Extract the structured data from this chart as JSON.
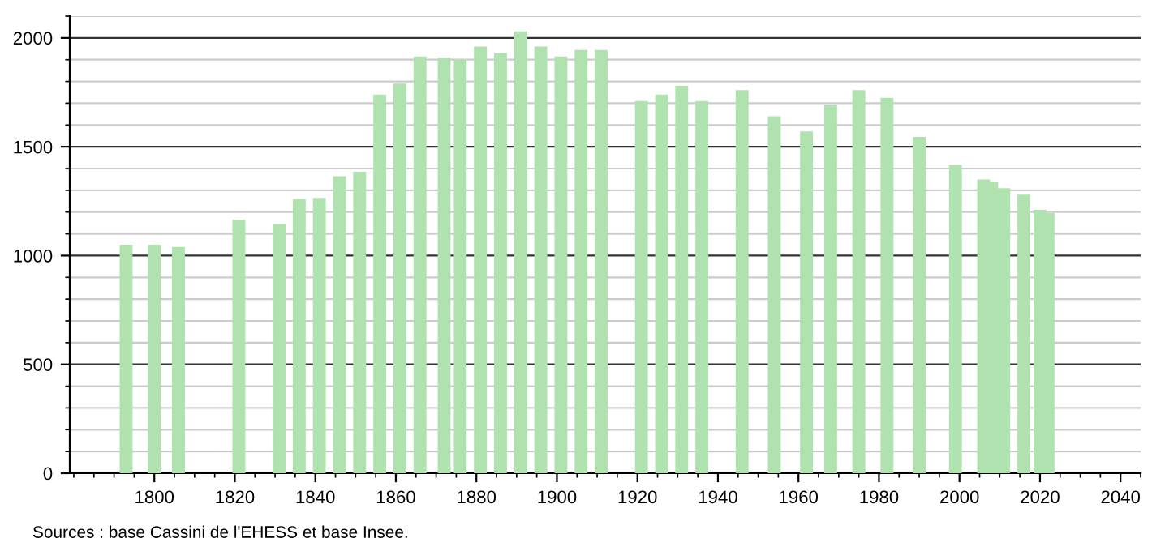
{
  "chart_data": {
    "type": "bar",
    "x": [
      1793,
      1800,
      1806,
      1821,
      1831,
      1836,
      1841,
      1846,
      1851,
      1856,
      1861,
      1866,
      1872,
      1876,
      1881,
      1886,
      1891,
      1896,
      1901,
      1906,
      1911,
      1921,
      1926,
      1931,
      1936,
      1946,
      1954,
      1962,
      1968,
      1975,
      1982,
      1990,
      1999,
      2006,
      2008,
      2011,
      2016,
      2020,
      2022
    ],
    "values": [
      1050,
      1050,
      1040,
      1165,
      1145,
      1260,
      1265,
      1365,
      1385,
      1740,
      1790,
      1915,
      1910,
      1900,
      1960,
      1930,
      2030,
      1960,
      1915,
      1945,
      1945,
      1710,
      1740,
      1780,
      1710,
      1760,
      1640,
      1570,
      1690,
      1760,
      1725,
      1545,
      1415,
      1350,
      1340,
      1310,
      1280,
      1210,
      1195
    ],
    "color": "#b0e2b0",
    "xlim": [
      1779,
      2045
    ],
    "xticks": [
      1800,
      1820,
      1840,
      1860,
      1880,
      1900,
      1920,
      1940,
      1960,
      1980,
      2000,
      2020,
      2040
    ],
    "ylim": [
      0,
      2100
    ],
    "yticks": [
      0,
      500,
      1000,
      1500,
      2000
    ],
    "grid": "y",
    "annotations": [
      "Sources : base Cassini de l'EHESS et base Insee."
    ]
  }
}
